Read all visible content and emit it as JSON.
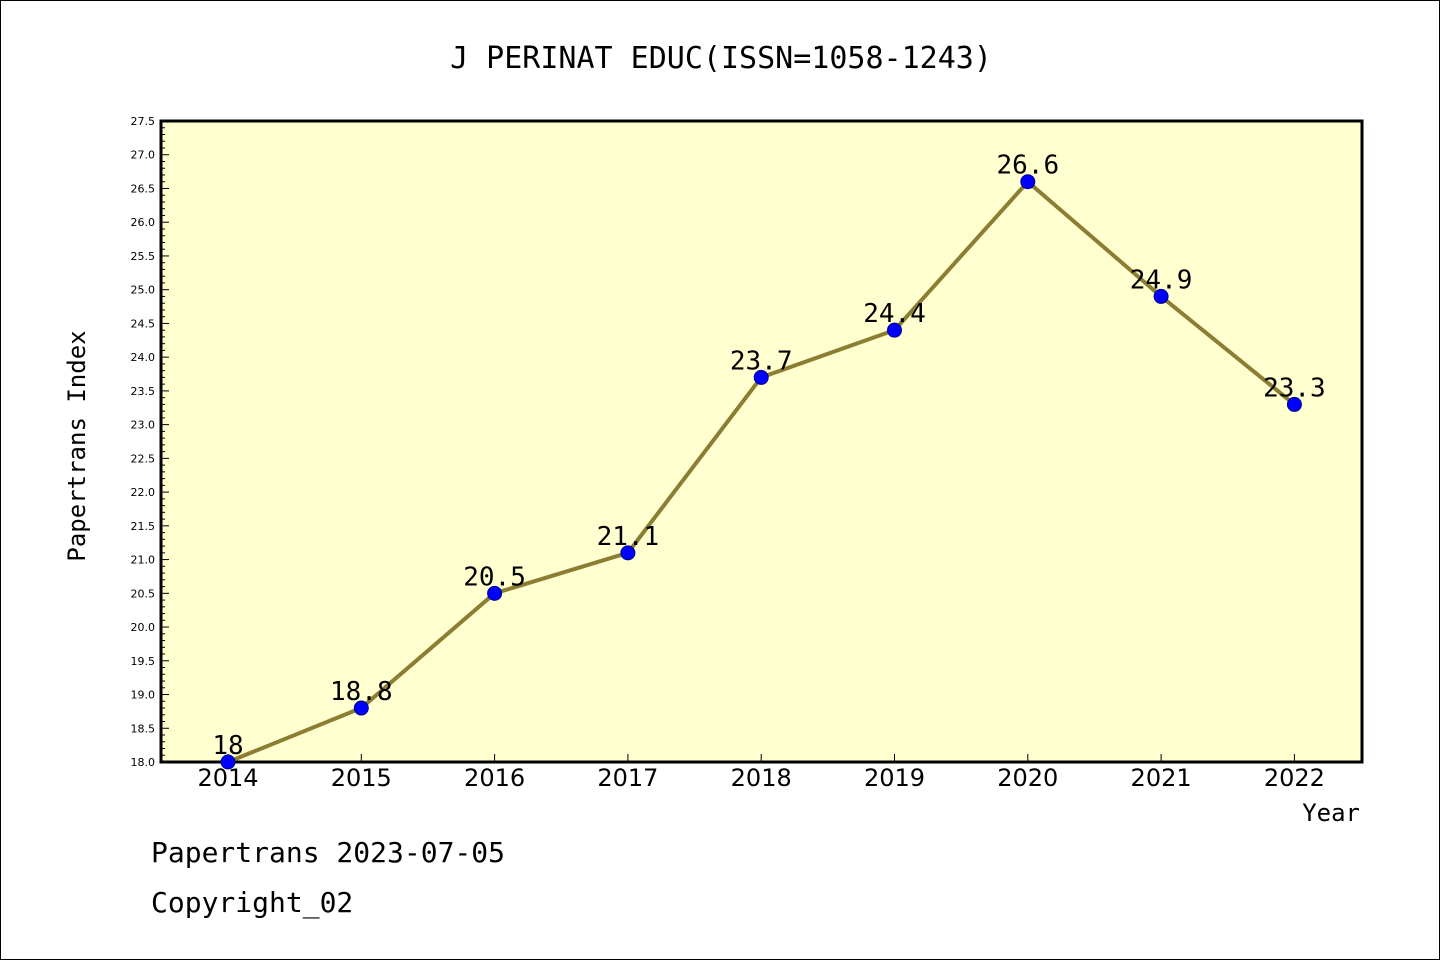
{
  "chart_data": {
    "type": "line",
    "title": "J PERINAT EDUC(ISSN=1058-1243)",
    "xlabel": "Year",
    "ylabel": "Papertrans Index",
    "categories": [
      "2014",
      "2015",
      "2016",
      "2017",
      "2018",
      "2019",
      "2020",
      "2021",
      "2022"
    ],
    "series": [
      {
        "values": [
          18,
          18.8,
          20.5,
          21.1,
          23.7,
          24.4,
          26.6,
          24.9,
          23.3
        ],
        "labels": [
          "18",
          "18.8",
          "20.5",
          "21.1",
          "23.7",
          "24.4",
          "26.6",
          "24.9",
          "23.3"
        ],
        "color": "#8b7d32",
        "marker_color": "#0000ff"
      }
    ],
    "ylim": [
      18.0,
      27.5
    ],
    "yticks": [
      "18.0",
      "18.5",
      "19.0",
      "19.5",
      "20.0",
      "20.5",
      "21.0",
      "21.5",
      "22.0",
      "22.5",
      "23.0",
      "23.5",
      "24.0",
      "24.5",
      "25.0",
      "25.5",
      "26.0",
      "26.5",
      "27.0",
      "27.5"
    ],
    "plot_background": "#ffffd0",
    "grid": false,
    "legend": "none"
  },
  "footer": {
    "date_text": "Papertrans 2023-07-05",
    "copyright_text": "Copyright_02"
  }
}
